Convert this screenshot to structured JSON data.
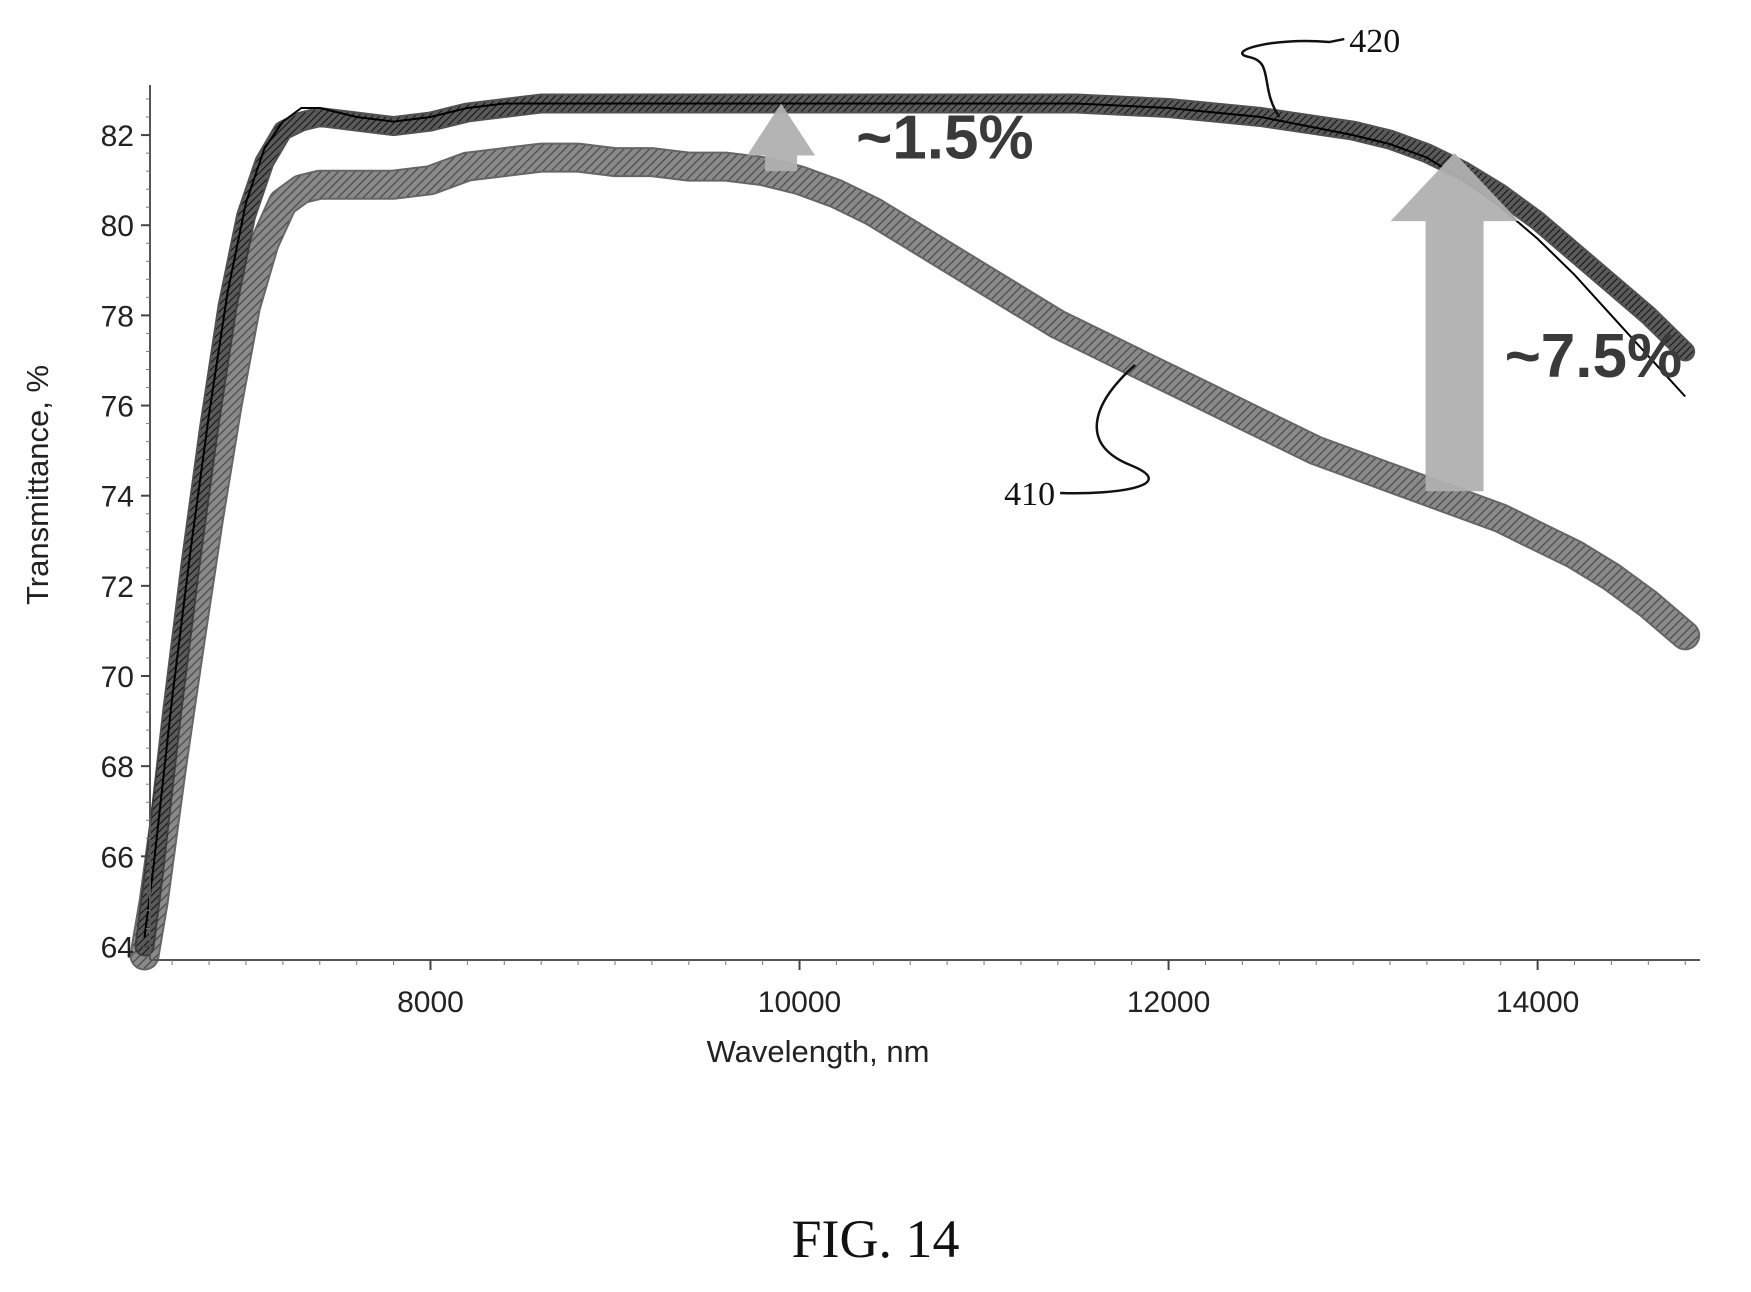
{
  "figure_label": "FIG. 14",
  "chart_data": {
    "type": "line",
    "title": "",
    "xlabel": "Wavelength, nm",
    "ylabel": "Transmittance, %",
    "xlim": [
      6400,
      14800
    ],
    "ylim": [
      63.8,
      83.2
    ],
    "x_ticks": [
      8000,
      10000,
      12000,
      14000
    ],
    "y_ticks": [
      64,
      66,
      68,
      70,
      72,
      74,
      76,
      78,
      80,
      82
    ],
    "grid": false,
    "legend": "none",
    "series": [
      {
        "label": "410",
        "color": "#6e6e6e",
        "style": "thick-hatched",
        "x": [
          6450,
          6500,
          6600,
          6700,
          6800,
          6900,
          7000,
          7100,
          7200,
          7300,
          7400,
          7600,
          7800,
          8000,
          8200,
          8400,
          8600,
          8800,
          9000,
          9200,
          9400,
          9600,
          9800,
          10000,
          10200,
          10400,
          10600,
          10800,
          11000,
          11200,
          11400,
          11600,
          11800,
          12000,
          12200,
          12400,
          12600,
          12800,
          13000,
          13200,
          13400,
          13600,
          13800,
          14000,
          14200,
          14400,
          14600,
          14800
        ],
        "y": [
          63.8,
          65.0,
          68.0,
          70.8,
          73.5,
          76.0,
          78.2,
          79.6,
          80.5,
          80.8,
          80.9,
          80.9,
          80.9,
          81.0,
          81.3,
          81.4,
          81.5,
          81.5,
          81.4,
          81.4,
          81.3,
          81.3,
          81.2,
          81.0,
          80.7,
          80.3,
          79.8,
          79.3,
          78.8,
          78.3,
          77.8,
          77.4,
          77.0,
          76.6,
          76.2,
          75.8,
          75.4,
          75.0,
          74.7,
          74.4,
          74.1,
          73.8,
          73.5,
          73.1,
          72.7,
          72.2,
          71.6,
          70.9
        ]
      },
      {
        "label": "420",
        "color": "#2a2a2a",
        "style": "hatched",
        "x": [
          6450,
          6500,
          6600,
          6700,
          6800,
          6900,
          7000,
          7100,
          7200,
          7300,
          7400,
          7600,
          7800,
          8000,
          8200,
          8400,
          8600,
          8800,
          9000,
          9500,
          10000,
          10500,
          11000,
          11500,
          12000,
          12500,
          13000,
          13200,
          13400,
          13600,
          13800,
          14000,
          14200,
          14400,
          14600,
          14800
        ],
        "y": [
          64.0,
          65.6,
          69.2,
          72.5,
          75.5,
          78.2,
          80.2,
          81.4,
          82.1,
          82.3,
          82.4,
          82.3,
          82.2,
          82.3,
          82.5,
          82.6,
          82.7,
          82.7,
          82.7,
          82.7,
          82.7,
          82.7,
          82.7,
          82.7,
          82.6,
          82.4,
          82.1,
          81.9,
          81.6,
          81.2,
          80.7,
          80.1,
          79.4,
          78.7,
          78.0,
          77.2
        ]
      },
      {
        "label": "",
        "color": "#000000",
        "style": "thin",
        "x": [
          6450,
          6500,
          6600,
          6700,
          6800,
          6900,
          7000,
          7100,
          7200,
          7300,
          7400,
          7600,
          7800,
          8000,
          8200,
          8400,
          8600,
          8800,
          9000,
          9500,
          10000,
          10500,
          11000,
          11500,
          12000,
          12500,
          13000,
          13200,
          13400,
          13600,
          13800,
          14000,
          14200,
          14400,
          14600,
          14800
        ],
        "y": [
          64.2,
          65.8,
          69.5,
          72.8,
          75.8,
          78.5,
          80.5,
          81.7,
          82.3,
          82.6,
          82.6,
          82.4,
          82.3,
          82.4,
          82.6,
          82.7,
          82.7,
          82.7,
          82.7,
          82.7,
          82.7,
          82.7,
          82.7,
          82.7,
          82.6,
          82.4,
          82.0,
          81.8,
          81.5,
          81.0,
          80.4,
          79.7,
          78.9,
          78.0,
          77.1,
          76.2
        ]
      }
    ],
    "annotations": [
      {
        "text": "~1.5%",
        "arrow_x": 9900,
        "arrow_from": 81.2,
        "arrow_to": 82.7
      },
      {
        "text": "~7.5%",
        "arrow_x": 13550,
        "arrow_from": 74.1,
        "arrow_to": 81.6
      }
    ]
  }
}
